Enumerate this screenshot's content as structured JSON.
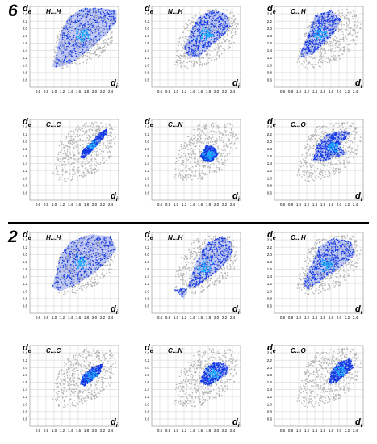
{
  "figure": {
    "section_labels": [
      "6",
      "2"
    ],
    "axis_labels": {
      "x": "d",
      "x_sub": "i",
      "y": "d",
      "y_sub": "e"
    },
    "y_ticks": [
      "2.4",
      "2.2",
      "2.0",
      "1.8",
      "1.6",
      "1.4",
      "1.2",
      "1.0",
      "0.8",
      "0.6"
    ],
    "x_ticks": [
      "0.6",
      "0.8",
      "1.0",
      "1.2",
      "1.4",
      "1.6",
      "1.8",
      "2.0",
      "2.2",
      "2.4"
    ],
    "colors": {
      "background_points": "#b4b4b4",
      "fill": "#1238e6",
      "dense": "#1ab0ff",
      "grid": "#d8d8d8",
      "text": "#000000"
    }
  },
  "chart_data": [
    {
      "type": "scatter",
      "compound": "6",
      "contact": "H...H",
      "xlabel": "d_i",
      "ylabel": "d_e",
      "xlim": [
        0.4,
        2.6
      ],
      "ylim": [
        0.4,
        2.6
      ],
      "grid": true,
      "highlight_region": [
        [
          0.95,
          0.95
        ],
        [
          1.05,
          1.3
        ],
        [
          1.15,
          1.85
        ],
        [
          1.35,
          2.3
        ],
        [
          1.7,
          2.55
        ],
        [
          2.2,
          2.55
        ],
        [
          2.55,
          2.5
        ],
        [
          2.55,
          2.2
        ],
        [
          2.35,
          1.9
        ],
        [
          1.95,
          1.5
        ],
        [
          1.5,
          1.1
        ],
        [
          1.15,
          0.95
        ]
      ]
    },
    {
      "type": "scatter",
      "compound": "6",
      "contact": "N...H",
      "xlabel": "d_i",
      "ylabel": "d_e",
      "xlim": [
        0.4,
        2.6
      ],
      "ylim": [
        0.4,
        2.6
      ],
      "grid": true,
      "highlight_region": [
        [
          1.2,
          1.45
        ],
        [
          1.35,
          1.9
        ],
        [
          1.55,
          2.3
        ],
        [
          1.9,
          2.5
        ],
        [
          2.25,
          2.4
        ],
        [
          2.35,
          2.05
        ],
        [
          2.2,
          1.85
        ],
        [
          1.9,
          1.55
        ],
        [
          1.6,
          1.25
        ],
        [
          1.35,
          1.2
        ]
      ]
    },
    {
      "type": "scatter",
      "compound": "6",
      "contact": "O...H",
      "xlabel": "d_i",
      "ylabel": "d_e",
      "xlim": [
        0.4,
        2.6
      ],
      "ylim": [
        0.4,
        2.6
      ],
      "grid": true,
      "highlight_region": [
        [
          1.0,
          1.2
        ],
        [
          1.2,
          1.75
        ],
        [
          1.4,
          2.35
        ],
        [
          1.8,
          2.5
        ],
        [
          2.05,
          2.25
        ],
        [
          1.9,
          1.9
        ],
        [
          1.6,
          1.55
        ],
        [
          1.35,
          1.3
        ]
      ]
    },
    {
      "type": "scatter",
      "compound": "6",
      "contact": "C...C",
      "xlabel": "d_i",
      "ylabel": "d_e",
      "xlim": [
        0.4,
        2.6
      ],
      "ylim": [
        0.4,
        2.6
      ],
      "grid": true,
      "highlight_region": [
        [
          1.65,
          1.55
        ],
        [
          1.7,
          1.75
        ],
        [
          1.9,
          1.95
        ],
        [
          2.1,
          2.2
        ],
        [
          2.3,
          2.35
        ],
        [
          2.3,
          2.2
        ],
        [
          2.1,
          1.95
        ],
        [
          1.9,
          1.7
        ],
        [
          1.75,
          1.55
        ]
      ]
    },
    {
      "type": "scatter",
      "compound": "6",
      "contact": "C...N",
      "xlabel": "d_i",
      "ylabel": "d_e",
      "xlim": [
        0.4,
        2.6
      ],
      "ylim": [
        0.4,
        2.6
      ],
      "grid": true,
      "highlight_region": [
        [
          1.6,
          1.6
        ],
        [
          1.75,
          1.9
        ],
        [
          1.95,
          1.85
        ],
        [
          2.05,
          1.65
        ],
        [
          1.9,
          1.45
        ],
        [
          1.7,
          1.45
        ]
      ]
    },
    {
      "type": "scatter",
      "compound": "6",
      "contact": "C...O",
      "xlabel": "d_i",
      "ylabel": "d_e",
      "xlim": [
        0.4,
        2.6
      ],
      "ylim": [
        0.4,
        2.6
      ],
      "grid": true,
      "highlight_region": [
        [
          1.35,
          1.5
        ],
        [
          1.45,
          1.9
        ],
        [
          1.7,
          2.2
        ],
        [
          2.1,
          2.3
        ],
        [
          2.3,
          2.25
        ],
        [
          2.0,
          1.9
        ],
        [
          2.2,
          1.65
        ],
        [
          1.85,
          1.55
        ],
        [
          1.6,
          1.45
        ]
      ]
    },
    {
      "type": "scatter",
      "compound": "2",
      "contact": "H...H",
      "xlabel": "d_i",
      "ylabel": "d_e",
      "xlim": [
        0.4,
        2.6
      ],
      "ylim": [
        0.4,
        2.6
      ],
      "grid": true,
      "highlight_region": [
        [
          0.95,
          1.1
        ],
        [
          1.05,
          1.5
        ],
        [
          1.15,
          1.95
        ],
        [
          1.4,
          2.35
        ],
        [
          1.9,
          2.55
        ],
        [
          2.4,
          2.5
        ],
        [
          2.55,
          2.15
        ],
        [
          2.35,
          1.85
        ],
        [
          1.95,
          1.45
        ],
        [
          1.5,
          1.15
        ],
        [
          1.15,
          1.0
        ]
      ]
    },
    {
      "type": "scatter",
      "compound": "2",
      "contact": "N...H",
      "xlabel": "d_i",
      "ylabel": "d_e",
      "xlim": [
        0.4,
        2.6
      ],
      "ylim": [
        0.4,
        2.6
      ],
      "grid": true,
      "highlight_region": [
        [
          1.2,
          0.8
        ],
        [
          1.35,
          1.3
        ],
        [
          1.5,
          1.8
        ],
        [
          1.75,
          2.3
        ],
        [
          2.15,
          2.5
        ],
        [
          2.4,
          2.3
        ],
        [
          2.35,
          1.9
        ],
        [
          2.05,
          1.55
        ],
        [
          1.75,
          1.35
        ],
        [
          1.5,
          1.1
        ],
        [
          0.95,
          1.05
        ]
      ]
    },
    {
      "type": "scatter",
      "compound": "2",
      "contact": "O...H",
      "xlabel": "d_i",
      "ylabel": "d_e",
      "xlim": [
        0.4,
        2.6
      ],
      "ylim": [
        0.4,
        2.6
      ],
      "grid": true,
      "highlight_region": [
        [
          1.1,
          1.2
        ],
        [
          1.3,
          1.7
        ],
        [
          1.5,
          2.2
        ],
        [
          1.85,
          2.45
        ],
        [
          2.3,
          2.35
        ],
        [
          2.4,
          2.0
        ],
        [
          2.05,
          1.65
        ],
        [
          1.75,
          1.45
        ],
        [
          1.45,
          1.2
        ],
        [
          1.2,
          1.05
        ]
      ]
    },
    {
      "type": "scatter",
      "compound": "2",
      "contact": "C...C",
      "xlabel": "d_i",
      "ylabel": "d_e",
      "xlim": [
        0.4,
        2.6
      ],
      "ylim": [
        0.4,
        2.6
      ],
      "grid": true,
      "highlight_region": [
        [
          1.65,
          1.55
        ],
        [
          1.7,
          1.8
        ],
        [
          1.95,
          2.0
        ],
        [
          2.2,
          2.1
        ],
        [
          2.15,
          1.85
        ],
        [
          1.95,
          1.65
        ],
        [
          1.75,
          1.5
        ]
      ]
    },
    {
      "type": "scatter",
      "compound": "2",
      "contact": "C...N",
      "xlabel": "d_i",
      "ylabel": "d_e",
      "xlim": [
        0.4,
        2.6
      ],
      "ylim": [
        0.4,
        2.6
      ],
      "grid": true,
      "highlight_region": [
        [
          1.6,
          1.6
        ],
        [
          1.7,
          1.95
        ],
        [
          1.95,
          2.15
        ],
        [
          2.25,
          2.1
        ],
        [
          2.3,
          1.85
        ],
        [
          2.05,
          1.65
        ],
        [
          1.8,
          1.5
        ]
      ]
    },
    {
      "type": "scatter",
      "compound": "2",
      "contact": "C...O",
      "xlabel": "d_i",
      "ylabel": "d_e",
      "xlim": [
        0.4,
        2.6
      ],
      "ylim": [
        0.4,
        2.6
      ],
      "grid": true,
      "highlight_region": [
        [
          1.75,
          1.55
        ],
        [
          1.8,
          1.9
        ],
        [
          2.0,
          2.15
        ],
        [
          2.3,
          2.25
        ],
        [
          2.35,
          2.0
        ],
        [
          2.15,
          1.8
        ],
        [
          1.95,
          1.6
        ]
      ]
    }
  ]
}
